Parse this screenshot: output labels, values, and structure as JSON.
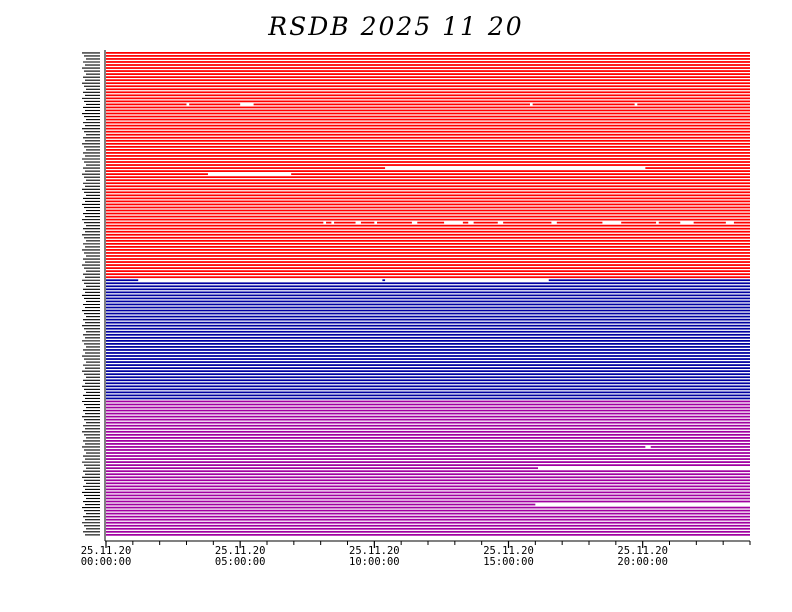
{
  "chart_data": {
    "type": "timeline",
    "title": "RSDB  2025  11  20",
    "x_ticks": [
      {
        "date": "25.11.20",
        "time": "00:00:00",
        "hour": 0
      },
      {
        "date": "25.11.20",
        "time": "05:00:00",
        "hour": 5
      },
      {
        "date": "25.11.20",
        "time": "10:00:00",
        "hour": 10
      },
      {
        "date": "25.11.20",
        "time": "15:00:00",
        "hour": 15
      },
      {
        "date": "25.11.20",
        "time": "20:00:00",
        "hour": 20
      }
    ],
    "x_range_hours": [
      0,
      24
    ],
    "groups": [
      {
        "color": "#ff0000",
        "rows": 75
      },
      {
        "color": "#0000a0",
        "rows": 40
      },
      {
        "color": "#a000a0",
        "rows": 45
      }
    ],
    "gaps": [
      {
        "row": 17,
        "start": 3.0,
        "end": 3.1
      },
      {
        "row": 17,
        "start": 5.0,
        "end": 5.5
      },
      {
        "row": 17,
        "start": 15.8,
        "end": 15.9
      },
      {
        "row": 17,
        "start": 19.7,
        "end": 19.8
      },
      {
        "row": 38,
        "start": 10.4,
        "end": 20.1
      },
      {
        "row": 40,
        "start": 3.8,
        "end": 6.9
      },
      {
        "row": 56,
        "start": 8.1,
        "end": 8.2
      },
      {
        "row": 56,
        "start": 8.4,
        "end": 8.5
      },
      {
        "row": 56,
        "start": 9.3,
        "end": 9.5
      },
      {
        "row": 56,
        "start": 10.0,
        "end": 10.1
      },
      {
        "row": 56,
        "start": 11.4,
        "end": 11.6
      },
      {
        "row": 56,
        "start": 12.6,
        "end": 13.3
      },
      {
        "row": 56,
        "start": 13.5,
        "end": 13.7
      },
      {
        "row": 56,
        "start": 14.6,
        "end": 14.8
      },
      {
        "row": 56,
        "start": 16.6,
        "end": 16.8
      },
      {
        "row": 56,
        "start": 18.5,
        "end": 19.2
      },
      {
        "row": 56,
        "start": 20.5,
        "end": 20.6
      },
      {
        "row": 56,
        "start": 21.4,
        "end": 21.9
      },
      {
        "row": 56,
        "start": 23.1,
        "end": 23.4
      },
      {
        "row": 75,
        "start": 1.2,
        "end": 10.3
      },
      {
        "row": 75,
        "start": 10.4,
        "end": 16.5
      },
      {
        "row": 130,
        "start": 20.1,
        "end": 20.3
      },
      {
        "row": 137,
        "start": 16.1,
        "end": 24.0
      },
      {
        "row": 149,
        "start": 16.0,
        "end": 24.0
      }
    ]
  }
}
